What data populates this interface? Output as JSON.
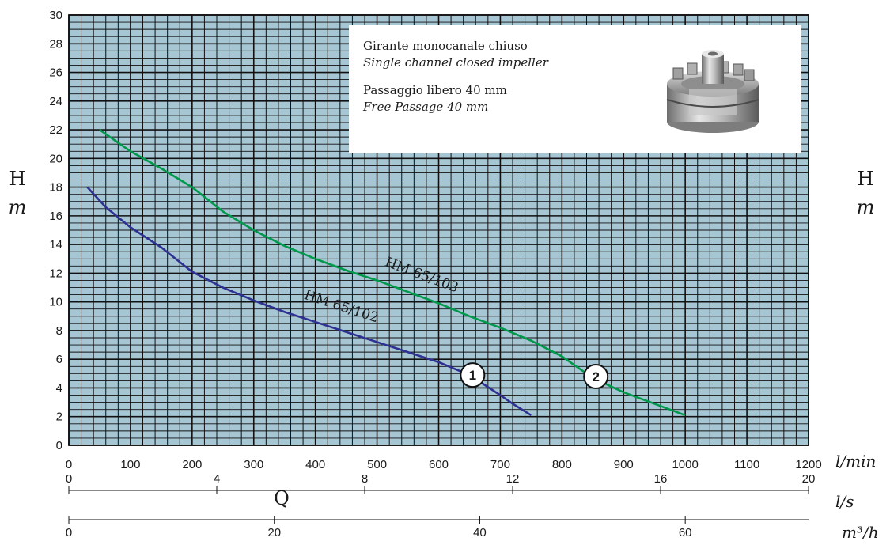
{
  "chart_data": {
    "type": "line",
    "title": "",
    "xlabel": "Q",
    "ylabel_left": "H",
    "ylabel_left_unit": "m",
    "ylabel_right": "H",
    "ylabel_right_unit": "m",
    "x_unit_primary": "l/min",
    "x_unit_secondary": "l/s",
    "x_unit_tertiary": "m³/h",
    "xlim": [
      0,
      1200
    ],
    "ylim": [
      0,
      30
    ],
    "x_ticks": [
      0,
      100,
      200,
      300,
      400,
      500,
      600,
      700,
      800,
      900,
      1000,
      1100,
      1200
    ],
    "y_ticks": [
      0,
      2,
      4,
      6,
      8,
      10,
      12,
      14,
      16,
      18,
      20,
      22,
      24,
      26,
      28,
      30
    ],
    "ls_ticks": [
      0,
      4,
      8,
      12,
      16,
      20
    ],
    "m3h_ticks": [
      0,
      20,
      40,
      60
    ],
    "grid": true,
    "series": [
      {
        "name": "HM 65/102",
        "marker": "1",
        "marker_at": [
          655,
          4.9
        ],
        "label_at": [
          440,
          9.4
        ],
        "color": "#2e3192",
        "x": [
          30,
          60,
          100,
          150,
          200,
          250,
          300,
          350,
          400,
          450,
          500,
          550,
          600,
          650,
          700,
          720,
          750
        ],
        "y": [
          18,
          16.6,
          15.2,
          13.8,
          12.1,
          11.0,
          10.1,
          9.3,
          8.6,
          7.9,
          7.2,
          6.5,
          5.8,
          4.9,
          3.5,
          2.9,
          2.1
        ]
      },
      {
        "name": "HM 65/103",
        "marker": "2",
        "marker_at": [
          855,
          4.8
        ],
        "label_at": [
          570,
          11.6
        ],
        "color": "#00994c",
        "x": [
          50,
          100,
          150,
          200,
          250,
          300,
          350,
          400,
          450,
          500,
          550,
          600,
          650,
          700,
          750,
          800,
          850,
          900,
          950,
          1000
        ],
        "y": [
          22,
          20.5,
          19.3,
          18.0,
          16.3,
          15.0,
          13.9,
          13.0,
          12.2,
          11.5,
          10.7,
          9.9,
          9.0,
          8.2,
          7.3,
          6.2,
          4.7,
          3.7,
          2.9,
          2.1
        ]
      }
    ]
  },
  "info": {
    "line1": "Girante monocanale chiuso",
    "line2": "Single channel closed impeller",
    "line3": "Passaggio libero 40 mm",
    "line4": "Free Passage 40 mm",
    "image": "impeller-illustration"
  },
  "colors": {
    "grid_background": "#a7c6d4",
    "grid_line": "#111111"
  }
}
